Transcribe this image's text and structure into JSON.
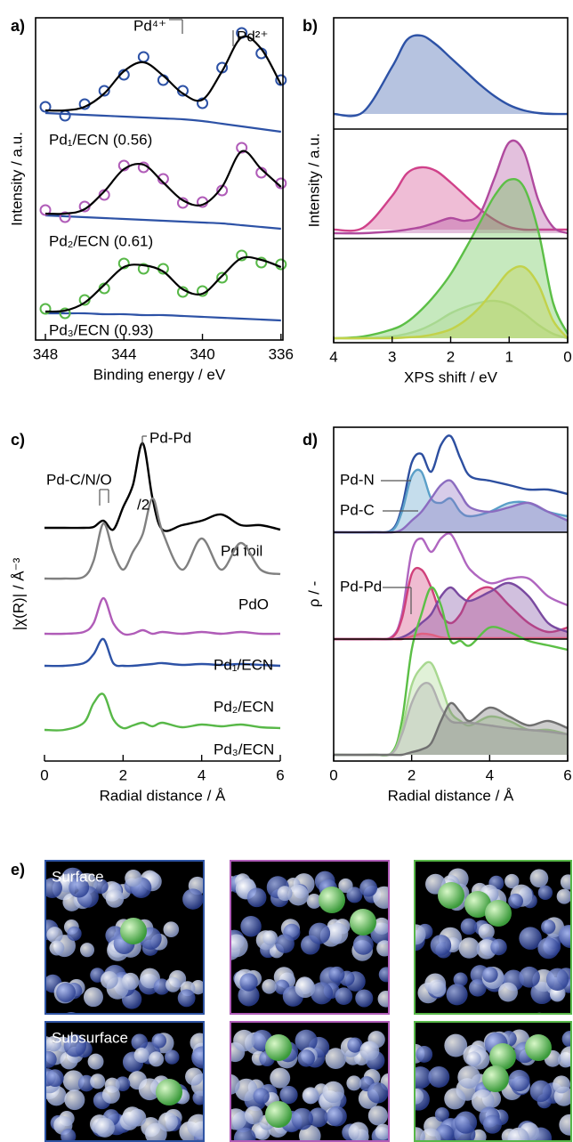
{
  "chart_data": [
    {
      "type": "spectra",
      "panel_label": "a)",
      "xlabel": "Binding energy / eV",
      "ylabel": "Intensity / a.u.",
      "x": [
        348,
        347,
        346,
        345,
        344,
        343,
        342,
        341,
        340,
        339,
        338,
        337,
        336
      ],
      "xlim": [
        348.5,
        335.9
      ],
      "xticks": [
        348,
        344,
        340,
        336
      ],
      "ylim": [
        0,
        362
      ],
      "fit_color": "#000000",
      "background_color": "#2d52a6",
      "annotations": [
        "Pd⁴⁺",
        "Pd²⁺"
      ],
      "samples": [
        {
          "label": "Pd₁/ECN (0.56)",
          "color": "#2d52a6",
          "fit": [
            258,
            258,
            262,
            277,
            302,
            312,
            297,
            277,
            270,
            302,
            340,
            327,
            287
          ],
          "data": [
            262,
            252,
            265,
            280,
            298,
            318,
            292,
            280,
            266,
            306,
            345,
            322,
            292
          ],
          "background": [
            255,
            254,
            253,
            252,
            251,
            250,
            249,
            248,
            246,
            243,
            240,
            237,
            234
          ]
        },
        {
          "label": "Pd₂/ECN (0.61)",
          "color": "#b05cb8",
          "fit": [
            142,
            142,
            147,
            167,
            192,
            197,
            177,
            157,
            152,
            172,
            212,
            192,
            172
          ],
          "data": [
            146,
            138,
            150,
            163,
            196,
            194,
            181,
            154,
            155,
            168,
            216,
            188,
            176
          ],
          "background": [
            140,
            139,
            138,
            137,
            136,
            135,
            134,
            133,
            132,
            131,
            129,
            127,
            125
          ]
        },
        {
          "label": "Pd₃/ECN (0.93)",
          "color": "#58b848",
          "fit": [
            32,
            33,
            42,
            62,
            82,
            84,
            77,
            57,
            52,
            72,
            92,
            90,
            82
          ],
          "data": [
            35,
            30,
            45,
            58,
            86,
            80,
            80,
            54,
            55,
            70,
            95,
            87,
            85
          ],
          "background": [
            30,
            30,
            30,
            29,
            29,
            28,
            28,
            27,
            26,
            25,
            24,
            23,
            22
          ]
        }
      ]
    },
    {
      "type": "area",
      "panel_label": "b)",
      "xlabel": "XPS shift / eV",
      "ylabel": "Intensity / a.u.",
      "x": [
        4,
        3.5,
        3,
        2.75,
        2.5,
        2.25,
        2,
        1.75,
        1.5,
        1.25,
        1,
        0.75,
        0.5,
        0.25,
        0
      ],
      "xlim": [
        4,
        0
      ],
      "xticks": [
        4,
        3,
        2,
        1,
        0
      ],
      "ylim": [
        0,
        365
      ],
      "series": [
        {
          "color": "#2d52a6",
          "fill": true,
          "values": [
            257,
            259,
            310,
            340,
            345,
            335,
            320,
            305,
            290,
            277,
            267,
            261,
            258,
            257,
            257
          ]
        },
        {
          "color": "#d0418a",
          "fill": true,
          "values": [
            127,
            129,
            165,
            190,
            197,
            193,
            180,
            165,
            150,
            138,
            130,
            127,
            127,
            127,
            127
          ]
        },
        {
          "color": "#b04a9e",
          "fill": true,
          "values": [
            123,
            123,
            125,
            127,
            130,
            135,
            140,
            137,
            145,
            185,
            225,
            215,
            160,
            130,
            123
          ]
        },
        {
          "color": "#5cbf46",
          "fill": true,
          "values": [
            5,
            7,
            15,
            23,
            37,
            55,
            77,
            105,
            135,
            165,
            183,
            175,
            125,
            45,
            10
          ]
        },
        {
          "color": "#a8d890",
          "fill": true,
          "values": [
            5,
            5,
            7,
            10,
            15,
            23,
            33,
            40,
            45,
            47,
            43,
            33,
            20,
            10,
            5
          ]
        },
        {
          "color": "#c2d24a",
          "fill": true,
          "values": [
            5,
            5,
            5,
            6,
            7,
            10,
            15,
            25,
            40,
            60,
            80,
            85,
            65,
            25,
            5
          ]
        }
      ]
    },
    {
      "type": "line",
      "panel_label": "c)",
      "xlabel": "Radial distance / Å",
      "ylabel": "|χ(R)| / Å⁻³",
      "x": [
        0,
        0.5,
        1,
        1.25,
        1.5,
        1.75,
        2,
        2.25,
        2.5,
        2.75,
        3,
        3.5,
        4,
        4.5,
        5,
        5.5,
        6
      ],
      "xlim": [
        0,
        6
      ],
      "xticks": [
        0,
        2,
        4,
        6
      ],
      "ylim": [
        0,
        375
      ],
      "annotations": [
        "Pd-Pd",
        "Pd-C/N/O",
        "/2"
      ],
      "series": [
        {
          "name": "Pd foil",
          "color": "#000000",
          "values": [
            262,
            262,
            262,
            263,
            270,
            260,
            285,
            310,
            357,
            295,
            260,
            265,
            270,
            277,
            265,
            265,
            260
          ]
        },
        {
          "name": "PdO",
          "color": "#808080",
          "values": [
            205,
            205,
            207,
            225,
            267,
            235,
            215,
            235,
            255,
            295,
            258,
            215,
            250,
            215,
            245,
            215,
            210
          ]
        },
        {
          "name": "Pd₁/ECN",
          "color": "#2d52a6",
          "values": [
            107,
            107,
            110,
            120,
            137,
            110,
            107,
            107,
            108,
            109,
            110,
            108,
            109,
            108,
            109,
            108,
            107
          ]
        },
        {
          "name": "Pd₂/ECN",
          "color": "#b05cb8",
          "values": [
            143,
            143,
            145,
            155,
            183,
            155,
            143,
            143,
            147,
            143,
            145,
            143,
            145,
            143,
            145,
            143,
            143
          ]
        },
        {
          "name": "Pd₃/ECN",
          "color": "#58b848",
          "values": [
            35,
            35,
            43,
            65,
            75,
            47,
            37,
            40,
            43,
            39,
            43,
            38,
            41,
            39,
            41,
            38,
            37
          ]
        }
      ]
    },
    {
      "type": "area",
      "panel_label": "d)",
      "xlabel": "Radial distance / Å",
      "ylabel": "ρ / -",
      "x": [
        0,
        1,
        1.5,
        1.75,
        2,
        2.25,
        2.5,
        2.75,
        3,
        3.25,
        3.5,
        4,
        4.5,
        5,
        5.5,
        6
      ],
      "xlim": [
        0,
        6
      ],
      "xticks": [
        0,
        2,
        4,
        6
      ],
      "ylim": [
        0,
        375
      ],
      "annotations": [
        "Pd-N",
        "Pd-C",
        "Pd-Pd"
      ],
      "series": [
        {
          "color": "#2d4fa0",
          "fill": false,
          "values": [
            257,
            257,
            260,
            285,
            335,
            345,
            325,
            355,
            365,
            340,
            320,
            315,
            310,
            305,
            305,
            300
          ]
        },
        {
          "color": "#5a9fc8",
          "fill": true,
          "values": [
            257,
            257,
            259,
            280,
            320,
            325,
            295,
            290,
            295,
            280,
            275,
            280,
            290,
            290,
            280,
            275
          ]
        },
        {
          "color": "#8b6cc0",
          "fill": true,
          "values": [
            257,
            257,
            257,
            260,
            270,
            280,
            295,
            310,
            315,
            300,
            285,
            280,
            285,
            290,
            280,
            270
          ]
        },
        {
          "color": "#b066c0",
          "fill": false,
          "values": [
            137,
            137,
            140,
            165,
            235,
            250,
            235,
            250,
            255,
            235,
            215,
            200,
            205,
            205,
            185,
            175
          ]
        },
        {
          "color": "#d0407a",
          "fill": true,
          "values": [
            137,
            137,
            139,
            160,
            210,
            215,
            195,
            165,
            155,
            165,
            185,
            195,
            175,
            155,
            145,
            150
          ]
        },
        {
          "color": "#7a4aa0",
          "fill": true,
          "values": [
            137,
            137,
            137,
            139,
            145,
            155,
            165,
            185,
            195,
            185,
            180,
            190,
            200,
            185,
            155,
            145
          ]
        },
        {
          "color": "#e06080",
          "fill": true,
          "values": [
            137,
            137,
            137,
            137,
            140,
            143,
            142,
            139,
            138,
            138,
            138,
            138,
            138,
            138,
            138,
            138
          ]
        },
        {
          "color": "#5cbf46",
          "fill": false,
          "values": [
            7,
            7,
            10,
            45,
            125,
            165,
            195,
            175,
            135,
            135,
            130,
            150,
            145,
            135,
            130,
            125
          ]
        },
        {
          "color": "#a8d890",
          "fill": true,
          "values": [
            7,
            7,
            9,
            35,
            85,
            105,
            110,
            85,
            55,
            45,
            40,
            50,
            45,
            35,
            35,
            30
          ]
        },
        {
          "color": "#b0b0b0",
          "fill": true,
          "values": [
            7,
            7,
            9,
            30,
            65,
            85,
            85,
            60,
            45,
            43,
            43,
            40,
            37,
            35,
            33,
            30
          ]
        },
        {
          "color": "#707070",
          "fill": true,
          "values": [
            7,
            7,
            7,
            7,
            10,
            13,
            20,
            45,
            65,
            55,
            45,
            60,
            50,
            40,
            45,
            37
          ]
        }
      ]
    }
  ],
  "panel_e": {
    "panel_label": "e)",
    "rows": [
      {
        "label": "Surface"
      },
      {
        "label": "Subsurface"
      }
    ]
  }
}
